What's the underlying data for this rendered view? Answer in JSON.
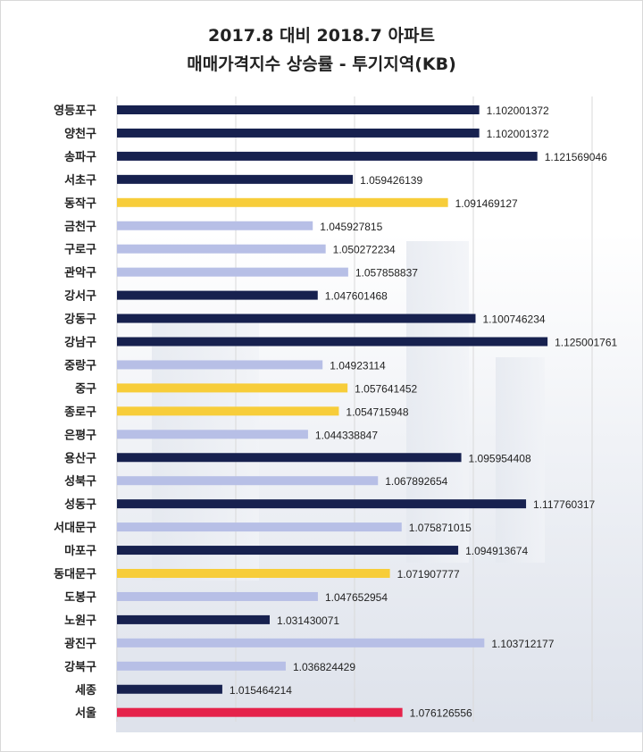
{
  "title_line1": "2017.8 대비 2018.7 아파트",
  "title_line2": "매매가격지수 상승률 - 투기지역(KB)",
  "colors": {
    "navy": "#17214f",
    "light": "#b7bfe6",
    "yellow": "#f7cd3a",
    "red": "#e5234b",
    "grid": "#d9d9d9"
  },
  "chart_data": {
    "type": "bar",
    "orientation": "horizontal",
    "title": "2017.8 대비 2018.7 아파트 매매가격지수 상승률 - 투기지역(KB)",
    "xlim": [
      0.98,
      1.14
    ],
    "grid": true,
    "categories": [
      "영등포구",
      "양천구",
      "송파구",
      "서초구",
      "동작구",
      "금천구",
      "구로구",
      "관악구",
      "강서구",
      "강동구",
      "강남구",
      "중랑구",
      "중구",
      "종로구",
      "은평구",
      "용산구",
      "성북구",
      "성동구",
      "서대문구",
      "마포구",
      "동대문구",
      "도봉구",
      "노원구",
      "광진구",
      "강북구",
      "세종",
      "서울"
    ],
    "values": [
      1.102001372,
      1.102001372,
      1.121569046,
      1.059426139,
      1.091469127,
      1.045927815,
      1.050272234,
      1.057858837,
      1.047601468,
      1.100746234,
      1.125001761,
      1.04923114,
      1.057641452,
      1.054715948,
      1.044338847,
      1.095954408,
      1.067892654,
      1.117760317,
      1.075871015,
      1.094913674,
      1.071907777,
      1.047652954,
      1.031430071,
      1.103712177,
      1.036824429,
      1.015464214,
      1.076126556
    ],
    "labels": [
      "1.102001372",
      "1.102001372",
      "1.121569046",
      "1.059426139",
      "1.091469127",
      "1.045927815",
      "1.050272234",
      "1.057858837",
      "1.047601468",
      "1.100746234",
      "1.125001761",
      "1.04923114",
      "1.057641452",
      "1.054715948",
      "1.044338847",
      "1.095954408",
      "1.067892654",
      "1.117760317",
      "1.075871015",
      "1.094913674",
      "1.071907777",
      "1.047652954",
      "1.031430071",
      "1.103712177",
      "1.036824429",
      "1.015464214",
      "1.076126556"
    ],
    "bar_colors": [
      "navy",
      "navy",
      "navy",
      "navy",
      "yellow",
      "light",
      "light",
      "light",
      "navy",
      "navy",
      "navy",
      "light",
      "yellow",
      "yellow",
      "light",
      "navy",
      "light",
      "navy",
      "light",
      "navy",
      "yellow",
      "light",
      "navy",
      "light",
      "light",
      "navy",
      "red"
    ]
  }
}
